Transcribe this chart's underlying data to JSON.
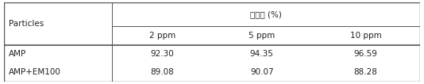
{
  "header_group": "제거율 (%)",
  "col_header": [
    "Particles",
    "2 ppm",
    "5 ppm",
    "10 ppm"
  ],
  "rows": [
    [
      "AMP",
      "92.30",
      "94.35",
      "96.59"
    ],
    [
      "AMP+EM100",
      "89.08",
      "90.07",
      "88.28"
    ]
  ],
  "bg_color": "#ffffff",
  "border_color": "#555555",
  "text_color": "#222222",
  "font_size": 7.5
}
